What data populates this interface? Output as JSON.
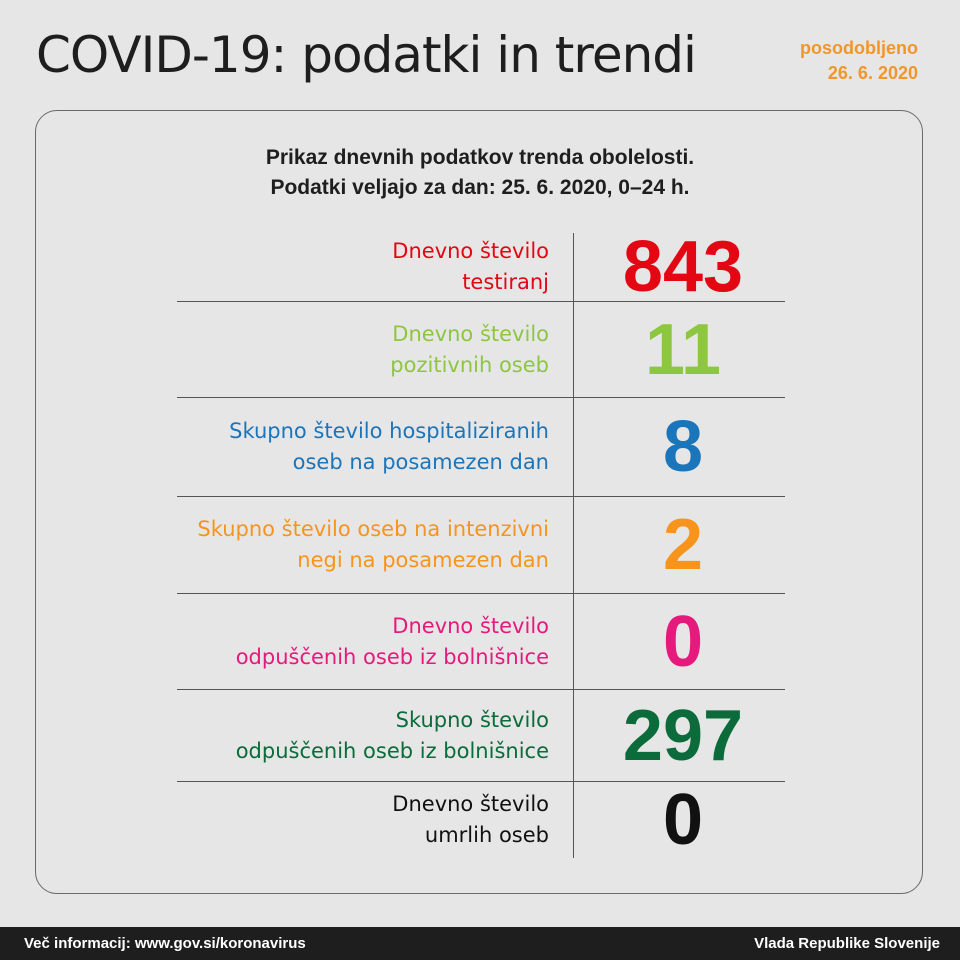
{
  "header": {
    "title": "COVID-19: podatki in trendi",
    "updated_label": "posodobljeno",
    "updated_date": "26. 6. 2020"
  },
  "subtitle": {
    "line1": "Prikaz dnevnih podatkov trenda obolelosti.",
    "line2": "Podatki veljajo za dan: 25. 6. 2020, 0–24 h."
  },
  "rows": [
    {
      "line1": "Dnevno število",
      "line2": "testiranj",
      "value": "843",
      "color": "#e30613"
    },
    {
      "line1": "Dnevno število",
      "line2": "pozitivnih oseb",
      "value": "11",
      "color": "#8dc63f"
    },
    {
      "line1": "Skupno število hospitaliziranih",
      "line2": "oseb na posamezen dan",
      "value": "8",
      "color": "#1b75bb"
    },
    {
      "line1": "Skupno število oseb na intenzivni",
      "line2": "negi na posamezen dan",
      "value": "2",
      "color": "#f7941d"
    },
    {
      "line1": "Dnevno število",
      "line2": "odpuščenih oseb iz bolnišnice",
      "value": "0",
      "color": "#e6197d"
    },
    {
      "line1": "Skupno število",
      "line2": "odpuščenih oseb iz bolnišnice",
      "value": "297",
      "color": "#0b6b3a"
    },
    {
      "line1": "Dnevno število",
      "line2": "umrlih oseb",
      "value": "0",
      "color": "#111111"
    }
  ],
  "footer": {
    "info": "Več informacij: www.gov.si/koronavirus",
    "org": "Vlada Republike Slovenije"
  }
}
